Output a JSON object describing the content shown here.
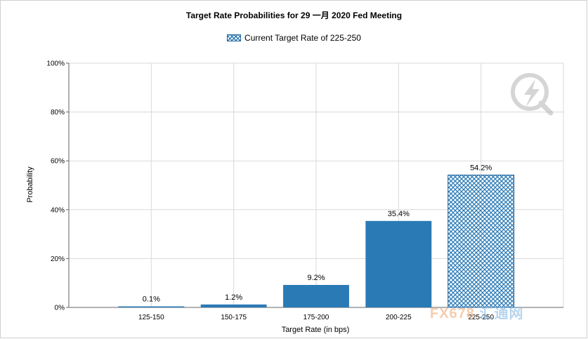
{
  "chart_data": {
    "type": "bar",
    "title": "Target Rate Probabilities for 29  一月  2020  Fed Meeting",
    "legend": {
      "label": "Current Target Rate of 225-250",
      "placement": "top-center"
    },
    "xlabel": "Target Rate (in bps)",
    "ylabel": "Probability",
    "categories": [
      "125-150",
      "150-175",
      "175-200",
      "200-225",
      "225-250"
    ],
    "values": [
      0.1,
      1.2,
      9.2,
      35.4,
      54.2
    ],
    "data_labels": [
      "0.1%",
      "1.2%",
      "9.2%",
      "35.4%",
      "54.2%"
    ],
    "highlight_category": "225-250",
    "ylim": [
      0,
      100
    ],
    "yticks": [
      "0%",
      "20%",
      "40%",
      "60%",
      "80%",
      "100%"
    ],
    "ytick_values": [
      0,
      20,
      40,
      60,
      80,
      100
    ],
    "grid": true,
    "bar_color": "#2a7ab6",
    "bar_edge_color": "#1f5f99",
    "grid_color": "#d9d9d9"
  },
  "watermark": {
    "fx_text": "FX678",
    "cn_text": "汇通网"
  }
}
